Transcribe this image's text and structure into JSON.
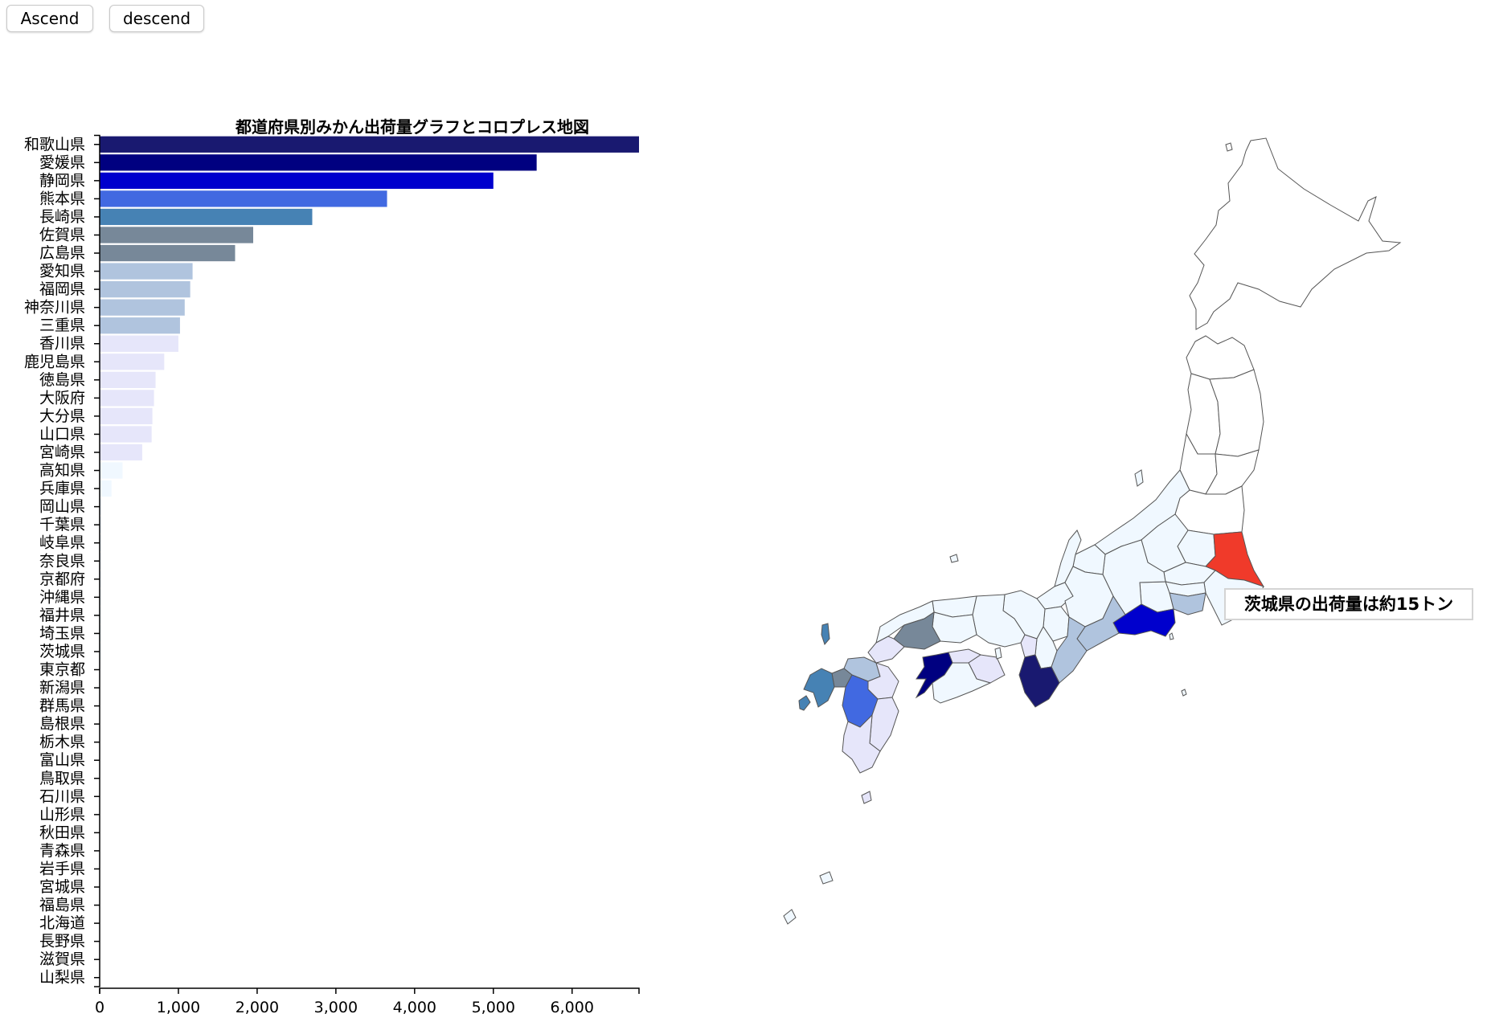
{
  "toolbar": {
    "ascend_label": "Ascend",
    "descend_label": "descend"
  },
  "tooltip": {
    "text": "茨城県の出荷量は約15トン"
  },
  "chart_data": {
    "type": "bar",
    "orientation": "horizontal",
    "title": "都道府県別みかん出荷量グラフとコロプレス地図",
    "xlabel": "",
    "ylabel": "",
    "xlim": [
      0,
      6850
    ],
    "xticks": [
      0,
      1000,
      2000,
      3000,
      4000,
      5000,
      6000
    ],
    "xtick_labels": [
      "0",
      "1,000",
      "2,000",
      "3,000",
      "4,000",
      "5,000",
      "6,000"
    ],
    "grid": false,
    "categories": [
      "和歌山県",
      "愛媛県",
      "静岡県",
      "熊本県",
      "長崎県",
      "佐賀県",
      "広島県",
      "愛知県",
      "福岡県",
      "神奈川県",
      "三重県",
      "香川県",
      "鹿児島県",
      "徳島県",
      "大阪府",
      "大分県",
      "山口県",
      "宮崎県",
      "高知県",
      "兵庫県",
      "岡山県",
      "千葉県",
      "岐阜県",
      "奈良県",
      "京都府",
      "沖縄県",
      "福井県",
      "埼玉県",
      "茨城県",
      "東京都",
      "新潟県",
      "群馬県",
      "島根県",
      "栃木県",
      "富山県",
      "鳥取県",
      "石川県",
      "山形県",
      "秋田県",
      "青森県",
      "岩手県",
      "宮城県",
      "福島県",
      "北海道",
      "長野県",
      "滋賀県",
      "山梨県"
    ],
    "values": [
      6850,
      5550,
      5000,
      3650,
      2700,
      1950,
      1720,
      1180,
      1150,
      1080,
      1020,
      1000,
      820,
      710,
      690,
      670,
      660,
      540,
      290,
      150,
      22,
      20,
      19,
      18,
      17,
      16,
      15,
      15,
      15,
      8,
      6,
      5,
      4,
      3,
      2,
      1,
      0,
      0,
      0,
      0,
      0,
      0,
      0,
      0,
      0,
      0,
      0
    ],
    "colors": [
      "#191970",
      "#000080",
      "#0000cd",
      "#4169e1",
      "#4682b4",
      "#778899",
      "#778899",
      "#b0c4de",
      "#b0c4de",
      "#b0c4de",
      "#b0c4de",
      "#e6e6fa",
      "#e6e6fa",
      "#e6e6fa",
      "#e6e6fa",
      "#e6e6fa",
      "#e6e6fa",
      "#e6e6fa",
      "#f0f8ff",
      "#f0f8ff",
      "#f0f8ff",
      "#f0f8ff",
      "#f0f8ff",
      "#f0f8ff",
      "#f0f8ff",
      "#f0f8ff",
      "#f0f8ff",
      "#f0f8ff",
      "#f0f8ff",
      "#f0f8ff",
      "#f0f8ff",
      "#f0f8ff",
      "#f0f8ff",
      "#f0f8ff",
      "#f0f8ff",
      "#f0f8ff",
      "#f0f8ff",
      "#f0f8ff",
      "#f0f8ff",
      "#f0f8ff",
      "#f0f8ff",
      "#f0f8ff",
      "#f0f8ff",
      "#f0f8ff",
      "#f0f8ff",
      "#f0f8ff",
      "#f0f8ff"
    ]
  },
  "map": {
    "highlight_color": "#f03a2a",
    "highlighted_prefecture": "茨城県"
  }
}
